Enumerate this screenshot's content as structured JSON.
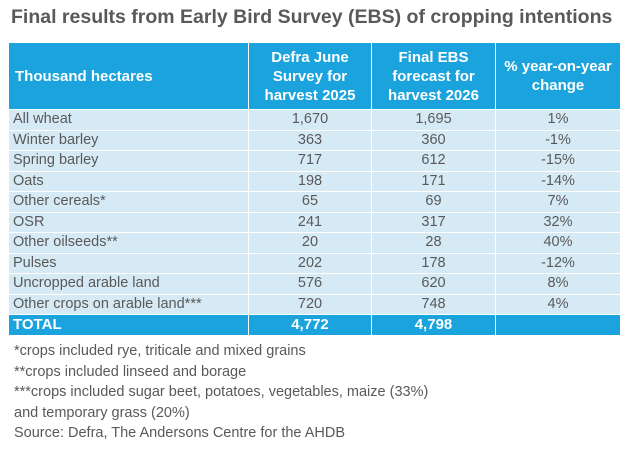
{
  "title": "Final results from Early Bird Survey (EBS) of cropping intentions",
  "table": {
    "headers": {
      "label": "Thousand hectares",
      "col1": [
        "Defra June",
        "Survey for",
        "harvest 2025"
      ],
      "col2": [
        "Final EBS",
        "forecast for",
        "harvest 2026"
      ],
      "col3": [
        "% year-on-year",
        "change"
      ]
    },
    "rows": [
      {
        "crop": "All wheat",
        "defra_2025": "1,670",
        "ebs_2026": "1,695",
        "change": "1%"
      },
      {
        "crop": "Winter barley",
        "defra_2025": "363",
        "ebs_2026": "360",
        "change": "-1%"
      },
      {
        "crop": "Spring barley",
        "defra_2025": "717",
        "ebs_2026": "612",
        "change": "-15%"
      },
      {
        "crop": "Oats",
        "defra_2025": "198",
        "ebs_2026": "171",
        "change": "-14%"
      },
      {
        "crop": "Other cereals*",
        "defra_2025": "65",
        "ebs_2026": "69",
        "change": "7%"
      },
      {
        "crop": "OSR",
        "defra_2025": "241",
        "ebs_2026": "317",
        "change": "32%"
      },
      {
        "crop": "Other oilseeds**",
        "defra_2025": "20",
        "ebs_2026": "28",
        "change": "40%"
      },
      {
        "crop": "Pulses",
        "defra_2025": "202",
        "ebs_2026": "178",
        "change": "-12%"
      },
      {
        "crop": "Uncropped arable land",
        "defra_2025": "576",
        "ebs_2026": "620",
        "change": "8%"
      },
      {
        "crop": "Other crops on arable land***",
        "defra_2025": "720",
        "ebs_2026": "748",
        "change": "4%"
      }
    ],
    "total": {
      "label": "TOTAL",
      "defra_2025": "4,772",
      "ebs_2026": "4,798",
      "change": ""
    }
  },
  "notes": [
    "*crops included rye, triticale and mixed grains",
    "**crops included linseed and borage",
    "***crops included sugar beet, potatoes, vegetables, maize (33%)",
    "and temporary grass (20%)",
    "Source: Defra, The Andersons Centre for the AHDB"
  ],
  "colors": {
    "header_bg": "#1aa3dd",
    "row_bg": "#d6eaf6",
    "text": "#595959"
  }
}
